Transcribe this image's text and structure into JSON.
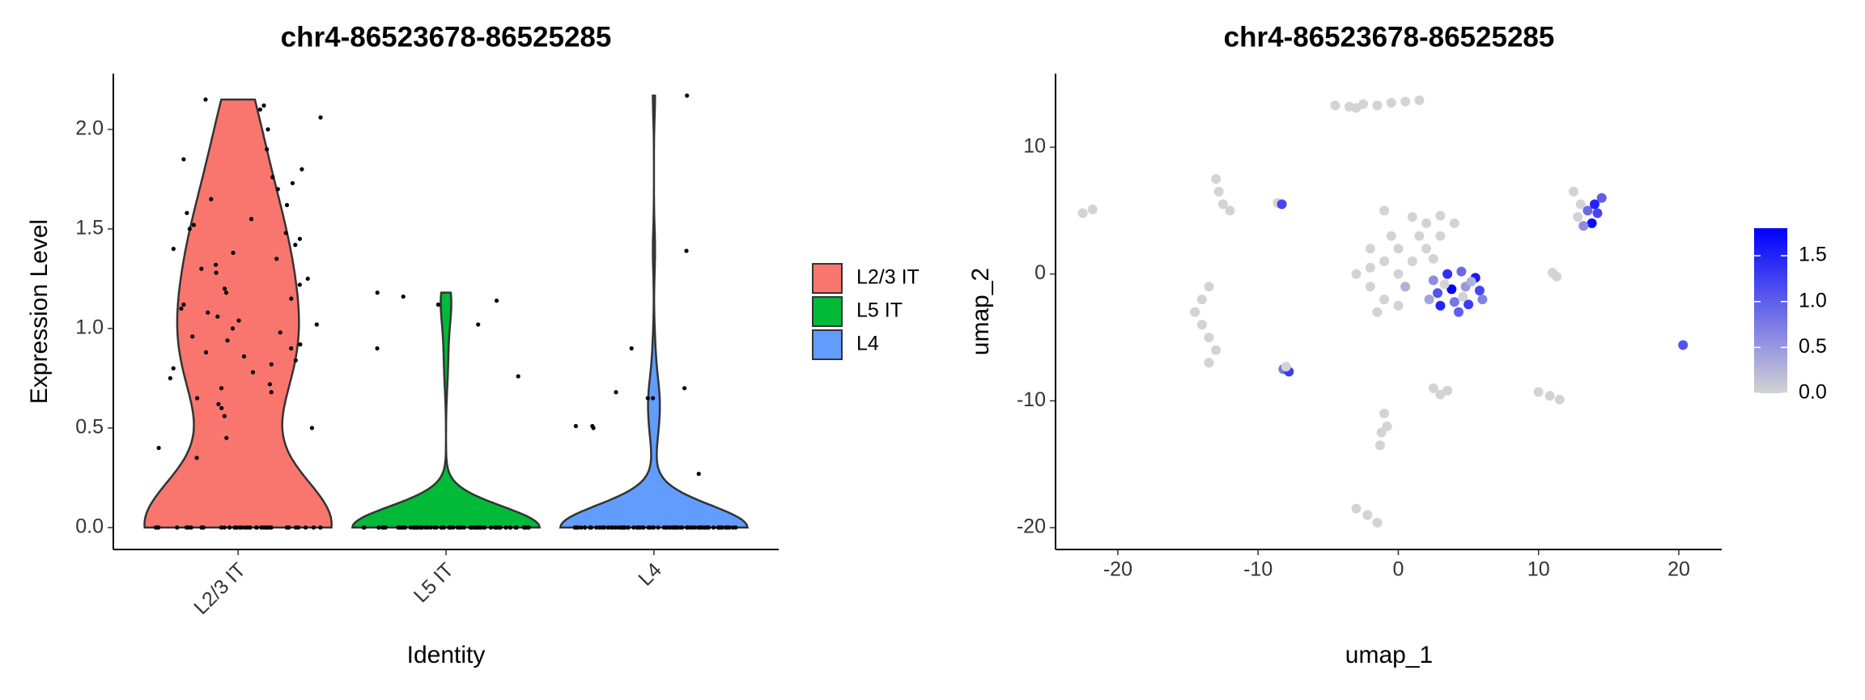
{
  "chart_data": [
    {
      "type": "violin",
      "title": "chr4-86523678-86525285",
      "xlabel": "Identity",
      "ylabel": "Expression Level",
      "categories": [
        "L2/3 IT",
        "L5 IT",
        "L4"
      ],
      "series": [
        {
          "name": "L2/3 IT",
          "color": "#F8766D",
          "values": [
            2.12,
            2.15,
            2.1,
            2.06,
            2.0,
            1.9,
            1.85,
            1.8,
            1.76,
            1.73,
            1.7,
            1.65,
            1.62,
            1.58,
            1.55,
            1.52,
            1.5,
            1.48,
            1.45,
            1.42,
            1.4,
            1.38,
            1.35,
            1.32,
            1.3,
            1.28,
            1.25,
            1.22,
            1.2,
            1.18,
            1.15,
            1.12,
            1.1,
            1.08,
            1.06,
            1.04,
            1.02,
            1.0,
            0.98,
            0.96,
            0.94,
            0.92,
            0.9,
            0.88,
            0.86,
            0.84,
            0.82,
            0.8,
            0.78,
            0.75,
            0.72,
            0.7,
            0.68,
            0.65,
            0.62,
            0.6,
            0.56,
            0.5,
            0.45,
            0.4,
            0.35,
            0,
            0,
            0,
            0,
            0,
            0,
            0,
            0,
            0,
            0,
            0,
            0,
            0,
            0,
            0,
            0,
            0,
            0,
            0,
            0,
            0,
            0,
            0,
            0,
            0,
            0,
            0,
            0,
            0,
            0,
            0,
            0,
            0,
            0,
            0,
            0,
            0,
            0,
            0,
            0
          ]
        },
        {
          "name": "L5 IT",
          "color": "#00BA38",
          "values": [
            1.02,
            0.9,
            0.76,
            1.18,
            1.16,
            1.12,
            1.14,
            0,
            0,
            0,
            0,
            0,
            0,
            0,
            0,
            0,
            0,
            0,
            0,
            0,
            0,
            0,
            0,
            0,
            0,
            0,
            0,
            0,
            0,
            0,
            0,
            0,
            0,
            0,
            0,
            0,
            0,
            0,
            0,
            0,
            0,
            0,
            0,
            0,
            0,
            0,
            0,
            0,
            0,
            0,
            0,
            0,
            0,
            0,
            0,
            0,
            0,
            0,
            0,
            0,
            0,
            0,
            0,
            0,
            0,
            0,
            0,
            0,
            0,
            0,
            0,
            0,
            0,
            0,
            0,
            0,
            0,
            0,
            0,
            0,
            0,
            0,
            0,
            0,
            0,
            0,
            0
          ]
        },
        {
          "name": "L4",
          "color": "#619CFF",
          "values": [
            1.39,
            0.7,
            0.68,
            0.5,
            0.27,
            0.51,
            0.51,
            0.65,
            0.65,
            0.9,
            2.17,
            0,
            0,
            0,
            0,
            0,
            0,
            0,
            0,
            0,
            0,
            0,
            0,
            0,
            0,
            0,
            0,
            0,
            0,
            0,
            0,
            0,
            0,
            0,
            0,
            0,
            0,
            0,
            0,
            0,
            0,
            0,
            0,
            0,
            0,
            0,
            0,
            0,
            0,
            0,
            0,
            0,
            0,
            0,
            0,
            0,
            0,
            0,
            0,
            0,
            0,
            0,
            0,
            0,
            0,
            0,
            0,
            0,
            0,
            0,
            0,
            0,
            0,
            0,
            0,
            0,
            0,
            0,
            0,
            0,
            0,
            0,
            0,
            0,
            0,
            0,
            0,
            0,
            0,
            0,
            0,
            0,
            0,
            0,
            0,
            0,
            0
          ]
        }
      ],
      "ylim": [
        -0.11,
        2.28
      ],
      "yticks": [
        {
          "value": 0,
          "label": "0.0"
        },
        {
          "value": 0.5,
          "label": "0.5"
        },
        {
          "value": 1,
          "label": "1.0"
        },
        {
          "value": 1.5,
          "label": "1.5"
        },
        {
          "value": 2,
          "label": "2.0"
        }
      ]
    },
    {
      "type": "scatter",
      "title": "chr4-86523678-86525285",
      "xlabel": "umap_1",
      "ylabel": "umap_2",
      "x": [
        -4.5,
        -3.5,
        -2.5,
        -1.5,
        -0.5,
        0.5,
        1.5,
        -3,
        -13,
        -12.8,
        -12.5,
        -12,
        -22.5,
        -21.8,
        -8.6,
        -8.3,
        -1,
        1,
        2,
        3,
        4,
        -0.5,
        1.5,
        3,
        -2,
        0,
        2,
        -1,
        1,
        -3,
        -2,
        -1,
        0,
        -1.5,
        0,
        -2,
        2.5,
        0.5,
        2.5,
        3.5,
        4.5,
        5.5,
        2.8,
        3.8,
        4.8,
        5.8,
        3.0,
        4.0,
        5.0,
        4.3,
        2.2,
        6.0,
        3.3,
        4.6,
        5.2,
        12.5,
        13,
        12.8,
        13.5,
        14,
        14.2,
        13.8,
        13.2,
        14.5,
        11,
        11.3,
        -13.5,
        -14,
        -14.5,
        -14,
        -13.5,
        -13,
        -13.5,
        -8.2,
        -7.8,
        -8,
        2.5,
        3.5,
        3,
        10,
        10.8,
        11.5,
        -1,
        -1.2,
        -1.3,
        -0.8,
        -3,
        -2.2,
        -1.5,
        20.3
      ],
      "y": [
        13.3,
        13.2,
        13.4,
        13.3,
        13.5,
        13.6,
        13.7,
        13.1,
        7.5,
        6.5,
        5.5,
        5,
        4.8,
        5.1,
        5.6,
        5.5,
        5,
        4.5,
        4,
        4.6,
        4,
        3,
        3,
        3,
        2,
        2,
        2,
        1,
        1,
        0,
        -1,
        -2,
        -2.5,
        -3,
        0,
        0.5,
        1.2,
        -1,
        -0.5,
        0,
        0.2,
        -0.3,
        -1.5,
        -1.2,
        -1.0,
        -1.3,
        -2.5,
        -2.2,
        -2.4,
        -3.0,
        -2.0,
        -2.0,
        -0.8,
        -1.8,
        -0.6,
        6.5,
        5.5,
        4.5,
        5,
        5.5,
        4.8,
        4,
        3.8,
        6,
        0.1,
        -0.2,
        -1,
        -2,
        -3,
        -4,
        -5,
        -6,
        -7,
        -7.5,
        -7.7,
        -7.3,
        -9,
        -9.2,
        -9.5,
        -9.3,
        -9.6,
        -9.9,
        -11,
        -12.5,
        -13.5,
        -12,
        -18.5,
        -19,
        -19.6,
        -5.6
      ],
      "values": [
        0,
        0,
        0,
        0,
        0,
        0,
        0,
        0,
        0,
        0,
        0,
        0,
        0,
        0,
        0,
        1.2,
        0,
        0,
        0,
        0,
        0,
        0,
        0,
        0,
        0,
        0,
        0,
        0,
        0,
        0,
        0,
        0,
        0,
        0,
        0,
        0,
        0,
        0.3,
        0.6,
        1.4,
        0.9,
        1.6,
        1.1,
        1.8,
        0.5,
        1.2,
        1.5,
        0.8,
        1.3,
        1.0,
        0.4,
        0.7,
        0,
        0,
        0.3,
        0,
        0,
        0,
        0.9,
        1.5,
        1.2,
        1.7,
        0.6,
        1.0,
        0,
        0,
        0,
        0,
        0,
        0,
        0,
        0,
        0,
        0.8,
        1.3,
        0,
        0,
        0,
        0,
        0,
        0,
        0,
        0,
        0,
        0,
        0,
        0,
        0,
        0,
        1.1
      ],
      "xlim": [
        -24.44,
        23.06
      ],
      "ylim": [
        -21.72,
        15.8
      ],
      "xticks": [
        -20,
        -10,
        0,
        10,
        20
      ],
      "yticks": [
        -20,
        -10,
        0,
        10
      ],
      "colorbar": {
        "lim": [
          0,
          1.8
        ],
        "low": "#d3d3d3",
        "high": "#0000ff",
        "ticks": [
          {
            "value": 0,
            "label": "0.0"
          },
          {
            "value": 0.5,
            "label": "0.5"
          },
          {
            "value": 1,
            "label": "1.0"
          },
          {
            "value": 1.5,
            "label": "1.5"
          }
        ]
      }
    }
  ]
}
